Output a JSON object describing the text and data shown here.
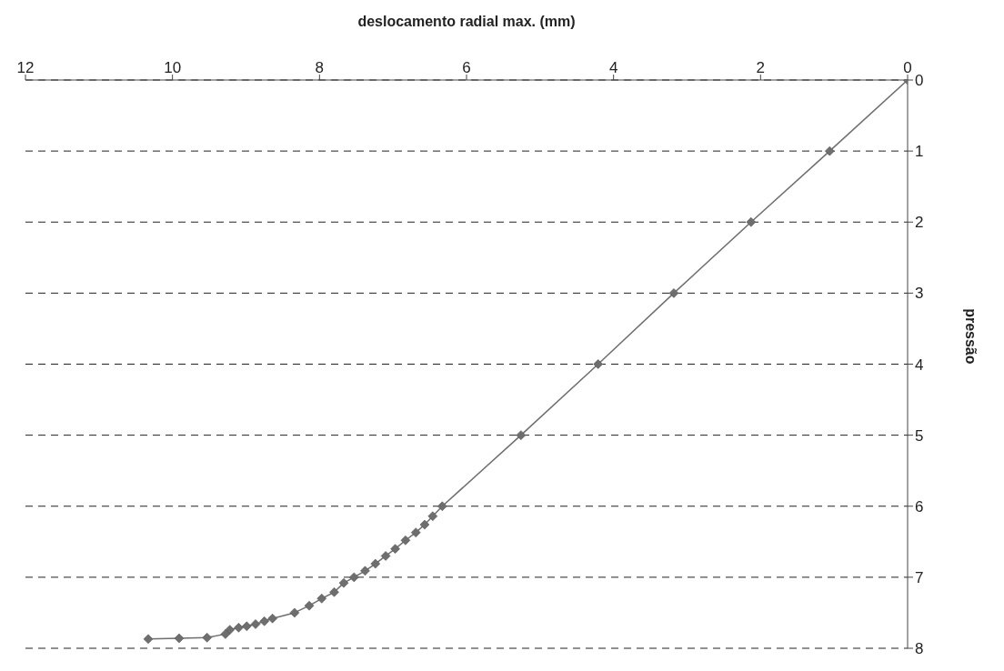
{
  "chart_data": {
    "type": "line",
    "xlabel": "deslocamento radial max. (mm)",
    "ylabel": "pressão",
    "xlim": [
      12,
      0
    ],
    "xticks": [
      0,
      2,
      4,
      6,
      8,
      10,
      12
    ],
    "ylim": [
      8,
      0
    ],
    "yticks": [
      0,
      1,
      2,
      3,
      4,
      5,
      6,
      7,
      8
    ],
    "grid": "y",
    "marker": "diamond",
    "line_style": "solid",
    "series": [
      {
        "color": "#6e6e6e",
        "x": [
          0,
          1.06,
          2.13,
          3.18,
          4.21,
          5.26,
          6.33,
          6.46,
          6.57,
          6.69,
          6.83,
          6.97,
          7.1,
          7.24,
          7.38,
          7.53,
          7.67,
          7.8,
          7.97,
          8.14,
          8.34,
          8.64,
          8.75,
          8.87,
          8.99,
          9.1,
          9.22,
          9.28,
          9.53,
          9.91,
          10.33
        ],
        "values": [
          0,
          1,
          2,
          3,
          4,
          5,
          6,
          6.14,
          6.26,
          6.37,
          6.48,
          6.6,
          6.7,
          6.81,
          6.91,
          7,
          7.08,
          7.21,
          7.3,
          7.4,
          7.5,
          7.58,
          7.62,
          7.66,
          7.69,
          7.71,
          7.74,
          7.8,
          7.85,
          7.86,
          7.87
        ]
      }
    ]
  }
}
